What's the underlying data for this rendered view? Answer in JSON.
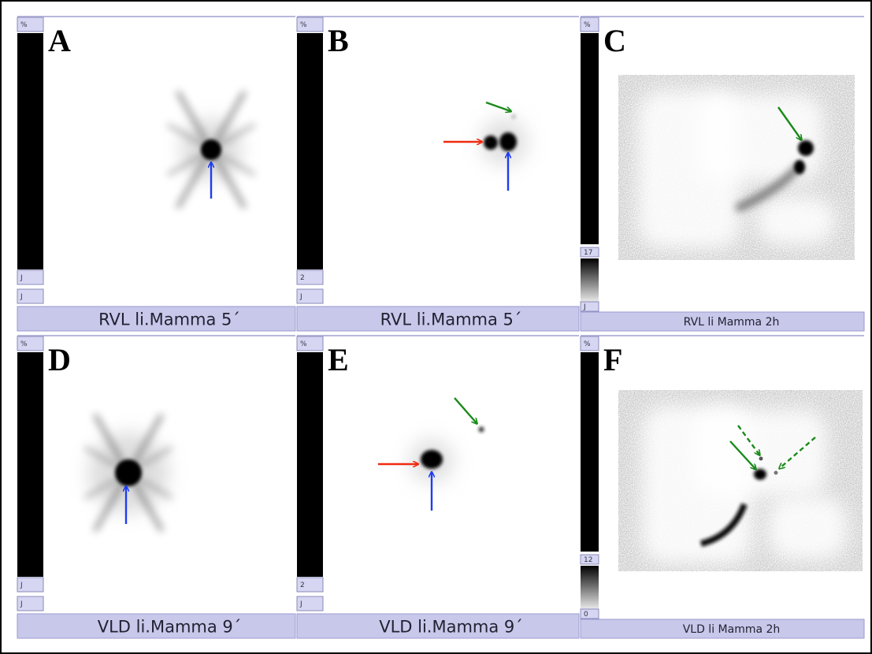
{
  "panels": [
    {
      "letter": "A",
      "scale_labels": [
        "%",
        "J",
        "J"
      ],
      "caption": "RVL li.Mamma 5´"
    },
    {
      "letter": "B",
      "scale_labels": [
        "%",
        "2",
        "J"
      ],
      "caption": "RVL li.Mamma 5´"
    },
    {
      "letter": "C",
      "scale_labels": [
        "%",
        "17",
        "J"
      ],
      "caption": "RVL li Mamma 2h"
    },
    {
      "letter": "D",
      "scale_labels": [
        "%",
        "J",
        "J"
      ],
      "caption": "VLD li.Mamma 9´"
    },
    {
      "letter": "E",
      "scale_labels": [
        "%",
        "2",
        "J"
      ],
      "caption": "VLD li.Mamma 9´"
    },
    {
      "letter": "F",
      "scale_labels": [
        "%",
        "12",
        "0"
      ],
      "caption": "VLD li Mamma 2h"
    }
  ]
}
